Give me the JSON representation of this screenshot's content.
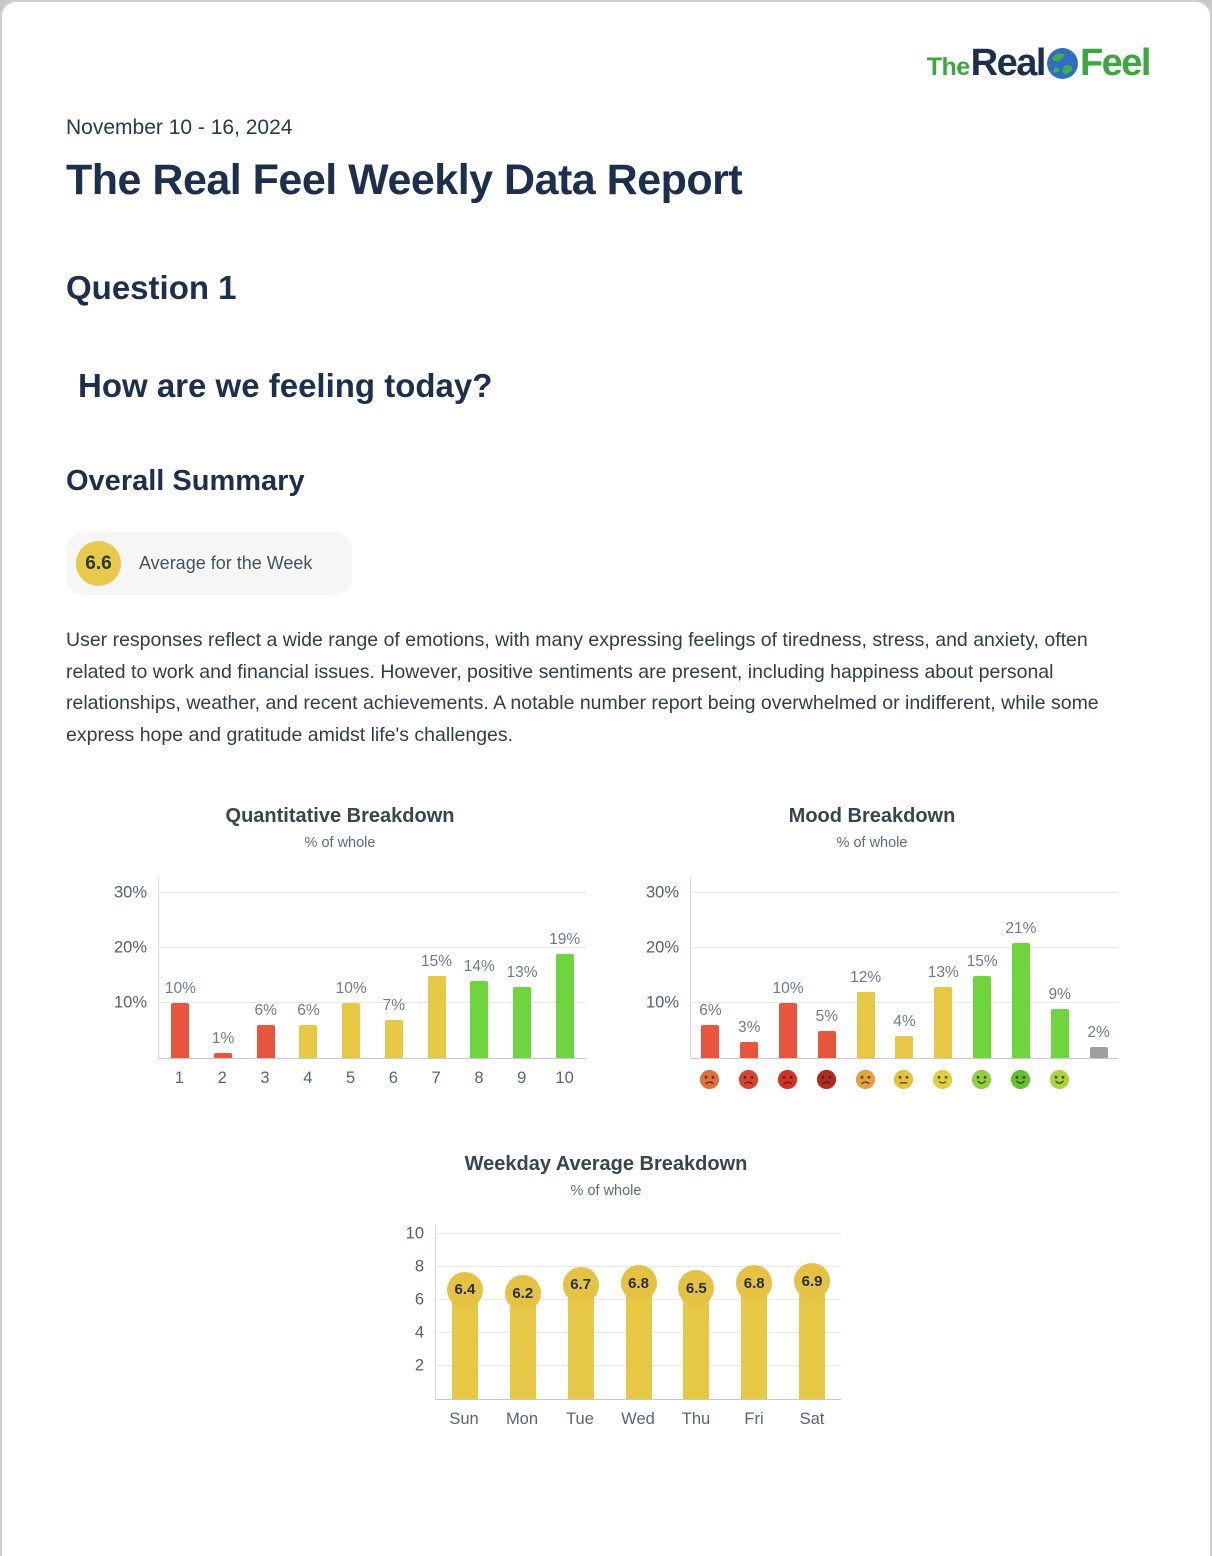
{
  "logo": {
    "prefix": "The",
    "word1": "Real",
    "word2": "Feel"
  },
  "header": {
    "date_range": "November 10 - 16, 2024",
    "title": "The Real Feel Weekly Data Report"
  },
  "question": {
    "label": "Question 1",
    "text": "How are we feeling today?"
  },
  "summary": {
    "heading": "Overall Summary",
    "badge_value": "6.6",
    "badge_label": "Average for the Week",
    "text": "User responses reflect a wide range of emotions, with many expressing feelings of tiredness, stress, and anxiety, often related to work and financial issues. However, positive sentiments are present, including happiness about personal relationships, weather, and recent achievements. A notable number report being overwhelmed or indifferent, while some express hope and gratitude amidst life's challenges."
  },
  "colors": {
    "red": "#e6553c",
    "yellow": "#e7c845",
    "green": "#6fd53c",
    "gray": "#9e9e9e",
    "badge_yellow": "#e8c94b",
    "navy": "#1d2f4e",
    "logo_green": "#3aa83c"
  },
  "chart_data": [
    {
      "type": "bar",
      "title": "Quantitative Breakdown",
      "subtitle": "% of whole",
      "categories": [
        "1",
        "2",
        "3",
        "4",
        "5",
        "6",
        "7",
        "8",
        "9",
        "10"
      ],
      "values": [
        10,
        1,
        6,
        6,
        10,
        7,
        15,
        14,
        13,
        19
      ],
      "value_labels": [
        "10%",
        "1%",
        "6%",
        "6%",
        "10%",
        "7%",
        "15%",
        "14%",
        "13%",
        "19%"
      ],
      "bar_colors": [
        "red",
        "red",
        "red",
        "yellow",
        "yellow",
        "yellow",
        "yellow",
        "green",
        "green",
        "green"
      ],
      "ylim": [
        0,
        33
      ],
      "yticks": [
        {
          "v": 10,
          "label": "10%"
        },
        {
          "v": 20,
          "label": "20%"
        },
        {
          "v": 30,
          "label": "30%"
        }
      ],
      "grid": true,
      "legend": false
    },
    {
      "type": "bar",
      "title": "Mood Breakdown",
      "subtitle": "% of whole",
      "categories": [
        "mood-1",
        "mood-2",
        "mood-3",
        "mood-4",
        "mood-5",
        "mood-6",
        "mood-7",
        "mood-8",
        "mood-9",
        "mood-10",
        "other"
      ],
      "values": [
        6,
        3,
        10,
        5,
        12,
        4,
        13,
        15,
        21,
        9,
        2
      ],
      "value_labels": [
        "6%",
        "3%",
        "10%",
        "5%",
        "12%",
        "4%",
        "13%",
        "15%",
        "21%",
        "9%",
        "2%"
      ],
      "bar_colors": [
        "red",
        "red",
        "red",
        "red",
        "yellow",
        "yellow",
        "yellow",
        "green",
        "green",
        "green",
        "gray"
      ],
      "category_icons": [
        {
          "name": "mood-1-icon",
          "color": "#e2703a",
          "expression": "frown"
        },
        {
          "name": "mood-2-icon",
          "color": "#d8452f",
          "expression": "frown"
        },
        {
          "name": "mood-3-icon",
          "color": "#d03326",
          "expression": "frown"
        },
        {
          "name": "mood-4-icon",
          "color": "#b02b22",
          "expression": "frown"
        },
        {
          "name": "mood-5-icon",
          "color": "#e2a23c",
          "expression": "frown"
        },
        {
          "name": "mood-6-icon",
          "color": "#e3c33e",
          "expression": "neutral"
        },
        {
          "name": "mood-7-icon",
          "color": "#ddd040",
          "expression": "slight-smile"
        },
        {
          "name": "mood-8-icon",
          "color": "#8fd13e",
          "expression": "smile"
        },
        {
          "name": "mood-9-icon",
          "color": "#5fc32f",
          "expression": "smile"
        },
        {
          "name": "mood-10-icon",
          "color": "#a8d53e",
          "expression": "smile"
        },
        null
      ],
      "ylim": [
        0,
        33
      ],
      "yticks": [
        {
          "v": 10,
          "label": "10%"
        },
        {
          "v": 20,
          "label": "20%"
        },
        {
          "v": 30,
          "label": "30%"
        }
      ],
      "grid": true,
      "legend": false
    },
    {
      "type": "bar",
      "title": "Weekday Average Breakdown",
      "subtitle": "% of whole",
      "categories": [
        "Sun",
        "Mon",
        "Tue",
        "Wed",
        "Thu",
        "Fri",
        "Sat"
      ],
      "values": [
        6.4,
        6.2,
        6.7,
        6.8,
        6.5,
        6.8,
        6.9
      ],
      "value_labels": [
        "6.4",
        "6.2",
        "6.7",
        "6.8",
        "6.5",
        "6.8",
        "6.9"
      ],
      "bar_colors": [
        "yellow",
        "yellow",
        "yellow",
        "yellow",
        "yellow",
        "yellow",
        "yellow"
      ],
      "ylim": [
        0,
        10
      ],
      "yticks": [
        {
          "v": 2,
          "label": "2"
        },
        {
          "v": 4,
          "label": "4"
        },
        {
          "v": 6,
          "label": "6"
        },
        {
          "v": 8,
          "label": "8"
        },
        {
          "v": 10,
          "label": "10"
        }
      ],
      "grid": true,
      "legend": false
    }
  ]
}
